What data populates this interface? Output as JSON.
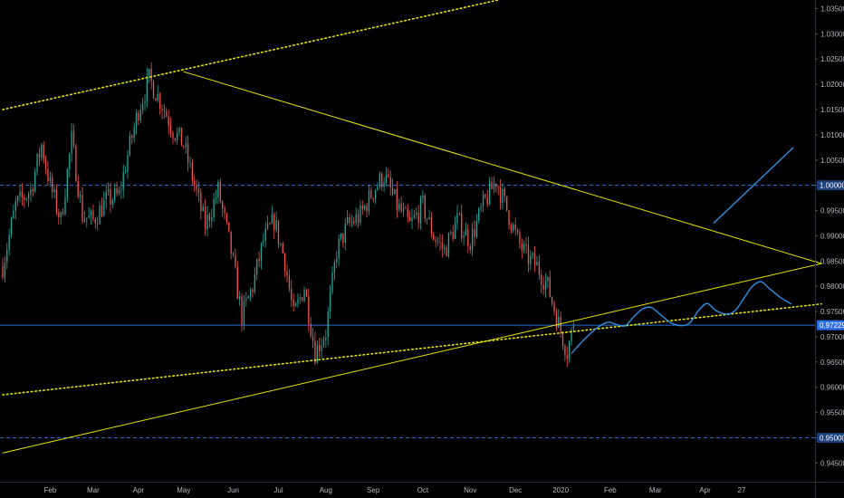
{
  "chart_data": {
    "type": "candlestick",
    "colors": {
      "background": "#000000",
      "up": "#26a69a",
      "down": "#ef5350",
      "trendline": "#e6e600",
      "forecast": "#2f8fe0",
      "level": "#2a6dd6",
      "axis_text": "#b2b5be",
      "current_tag": "#2f6fe6"
    },
    "y_axis": {
      "range": [
        0.9413,
        1.0367
      ],
      "ticks": [
        "1.03500",
        "1.03000",
        "1.02500",
        "1.02000",
        "1.01500",
        "1.01000",
        "1.00500",
        "1.00000",
        "0.99500",
        "0.99000",
        "0.98500",
        "0.98000",
        "0.97500",
        "0.97000",
        "0.96500",
        "0.96000",
        "0.95500",
        "0.95000",
        "0.94500"
      ]
    },
    "x_axis": {
      "labels": [
        "Feb",
        "Mar",
        "Apr",
        "May",
        "Jun",
        "Jul",
        "Aug",
        "Sep",
        "Oct",
        "Nov",
        "Dec",
        "2020",
        "Feb",
        "Mar",
        "Apr",
        "27"
      ],
      "label_day_index": [
        22,
        42,
        63,
        84,
        107,
        128,
        150,
        172,
        195,
        217,
        238,
        259,
        282,
        303,
        326,
        343
      ]
    },
    "current_price": "0.97229",
    "horizontal_levels": [
      {
        "price": 1.0,
        "label": "1.00000",
        "style": "dashed"
      },
      {
        "price": 0.95,
        "label": "0.95000",
        "style": "dashed"
      },
      {
        "price": 0.97229,
        "label": "0.97229",
        "style": "solid"
      }
    ],
    "price_series": {
      "day_index": [
        0,
        6,
        13,
        18,
        22,
        27,
        32,
        37,
        42,
        48,
        54,
        58,
        63,
        68,
        74,
        79,
        84,
        89,
        94,
        100,
        106,
        111,
        116,
        121,
        126,
        131,
        135,
        140,
        145,
        150,
        155,
        160,
        166,
        172,
        177,
        183,
        189,
        195,
        200,
        205,
        211,
        217,
        223,
        229,
        235,
        239,
        243,
        248,
        253,
        257,
        262,
        265
      ],
      "close": [
        0.984,
        0.996,
        0.999,
        1.008,
        1.0,
        0.993,
        1.009,
        0.994,
        0.993,
        0.997,
        0.998,
        1.006,
        1.015,
        1.021,
        1.016,
        1.011,
        1.008,
        1.0,
        0.992,
        0.999,
        0.987,
        0.974,
        0.98,
        0.989,
        0.993,
        0.985,
        0.974,
        0.98,
        0.967,
        0.971,
        0.987,
        0.992,
        0.994,
        0.999,
        1.002,
        0.996,
        0.992,
        0.996,
        0.99,
        0.987,
        0.993,
        0.989,
        0.996,
        1.001,
        0.994,
        0.989,
        0.986,
        0.984,
        0.98,
        0.974,
        0.967,
        0.9723
      ]
    },
    "trendlines": [
      {
        "name": "",
        "style": "dotted",
        "points": [
          [
            0,
            1.015
          ],
          [
            230,
            1.0367
          ]
        ]
      },
      {
        "name": "",
        "style": "solid",
        "points": [
          [
            84,
            1.0225
          ],
          [
            380,
            0.9845
          ]
        ]
      },
      {
        "name": "",
        "style": "solid",
        "points": [
          [
            0,
            0.947
          ],
          [
            380,
            0.9845
          ]
        ]
      },
      {
        "name": "",
        "style": "dotted",
        "points": [
          [
            0,
            0.9585
          ],
          [
            380,
            0.9765
          ]
        ]
      }
    ],
    "forecast_paths": [
      [
        [
          264,
          0.9667
        ],
        [
          270,
          0.9695
        ],
        [
          276,
          0.9718
        ],
        [
          281,
          0.9729
        ],
        [
          285,
          0.9724
        ],
        [
          289,
          0.9722
        ],
        [
          293,
          0.974
        ],
        [
          297,
          0.9755
        ],
        [
          301,
          0.9758
        ],
        [
          305,
          0.9745
        ],
        [
          310,
          0.9728
        ],
        [
          315,
          0.9722
        ],
        [
          319,
          0.9728
        ],
        [
          323,
          0.9752
        ],
        [
          327,
          0.9766
        ],
        [
          331,
          0.9752
        ],
        [
          336,
          0.9745
        ],
        [
          340,
          0.9752
        ],
        [
          344,
          0.9776
        ],
        [
          348,
          0.98
        ],
        [
          352,
          0.9809
        ],
        [
          356,
          0.9795
        ],
        [
          361,
          0.9778
        ],
        [
          366,
          0.9765
        ]
      ],
      [
        [
          330,
          0.9925
        ],
        [
          367,
          1.0075
        ]
      ]
    ]
  }
}
